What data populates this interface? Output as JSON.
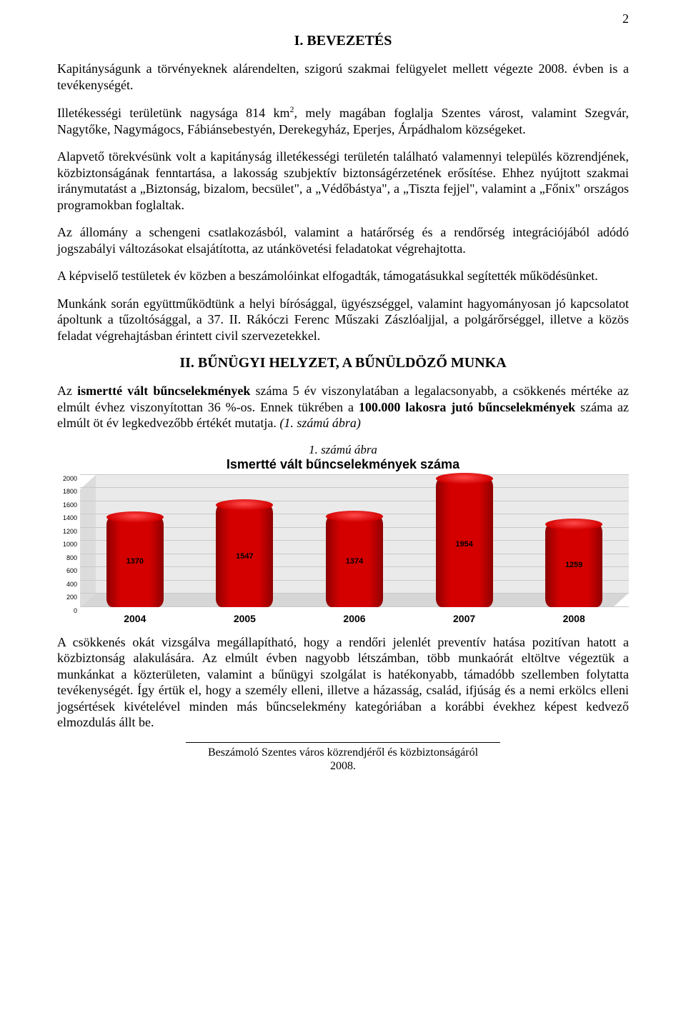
{
  "page_number": "2",
  "section1_title": "I. BEVEZETÉS",
  "p1_a": "Kapitányságunk a törvényeknek alárendelten, szigorú szakmai felügyelet mellett végezte 2008. évben is a tevékenységét.",
  "p2_a": "Illetékességi területünk nagysága 814 km",
  "p2_sup": "2",
  "p2_b": ", mely magában foglalja Szentes várost, valamint Szegvár, Nagytőke, Nagymágocs, Fábiánsebestyén, Derekegyház, Eperjes, Árpádhalom községeket.",
  "p3": "Alapvető törekvésünk volt a kapitányság illetékességi területén található valamennyi település közrendjének, közbiztonságának fenntartása, a lakosság szubjektív biztonságérzetének erősítése. Ehhez nyújtott szakmai iránymutatást a „Biztonság, bizalom, becsület\", a „Védőbástya\", a „Tiszta fejjel\", valamint a „Főnix\" országos programokban foglaltak.",
  "p4": "Az állomány a schengeni csatlakozásból, valamint a határőrség és a rendőrség integrációjából adódó jogszabályi változásokat elsajátította, az utánkövetési feladatokat végrehajtotta.",
  "p5": "A képviselő testületek év közben a beszámolóinkat elfogadták, támogatásukkal segítették működésünket.",
  "p6": "Munkánk során együttműködtünk a helyi bírósággal, ügyészséggel, valamint hagyományosan jó kapcsolatot ápoltunk a tűzoltósággal, a 37. II. Rákóczi Ferenc Műszaki Zászlóaljjal, a polgárőrséggel, illetve a közös feladat végrehajtásban érintett civil szervezetekkel.",
  "section2_title": "II. BŰNÜGYI HELYZET, A BŰNÜLDÖZŐ MUNKA",
  "p7_a": "Az ",
  "p7_b": "ismertté vált bűncselekmények",
  "p7_c": " száma 5 év viszonylatában a legalacsonyabb, a csökkenés mértéke az elmúlt évhez viszonyítottan 36 %-os. Ennek tükrében a ",
  "p7_d": "100.000 lakosra jutó bűncselekmények",
  "p7_e": " száma az elmúlt öt év legkedvezőbb értékét mutatja. ",
  "p7_f": "(1. számú ábra)",
  "fig_caption_1": "1. számú ábra",
  "fig_caption_2": "Ismertté vált bűncselekmények száma",
  "chart": {
    "type": "3d-cylinder-bar",
    "categories": [
      "2004",
      "2005",
      "2006",
      "2007",
      "2008"
    ],
    "values": [
      1370,
      1547,
      1374,
      1954,
      1259
    ],
    "value_labels": [
      "1370",
      "1547",
      "1374",
      "1954",
      "1259"
    ],
    "ylim": [
      0,
      2000
    ],
    "ytick_step": 200,
    "yticks": [
      "0",
      "200",
      "400",
      "600",
      "800",
      "1000",
      "1200",
      "1400",
      "1600",
      "1800",
      "2000"
    ],
    "bar_fill": "#d40000",
    "bar_fill_dark": "#8e0000",
    "bar_cap": "#ff4a4a",
    "floor_color": "#d6d6d6",
    "back_wall": "#eaeaea",
    "grid_color": "#c9c9c9",
    "tick_font_size": 9,
    "xlabel_font_size": 14,
    "value_font_size": 11
  },
  "p8": "A csökkenés okát vizsgálva megállapítható, hogy a rendőri jelenlét preventív hatása pozitívan hatott a közbiztonság alakulására. Az elmúlt évben nagyobb létszámban, több munkaórát eltöltve végeztük a munkánkat a közterületen, valamint a bűnügyi szolgálat is hatékonyabb, támadóbb szellemben folytatta tevékenységét. Így értük el, hogy a személy elleni, illetve a házasság, család, ifjúság és a nemi erkölcs elleni jogsértések kivételével minden más bűncselekmény kategóriában a korábbi évekhez képest kedvező elmozdulás állt be.",
  "footer_1": "Beszámoló Szentes város közrendjéről és közbiztonságáról",
  "footer_2": "2008."
}
